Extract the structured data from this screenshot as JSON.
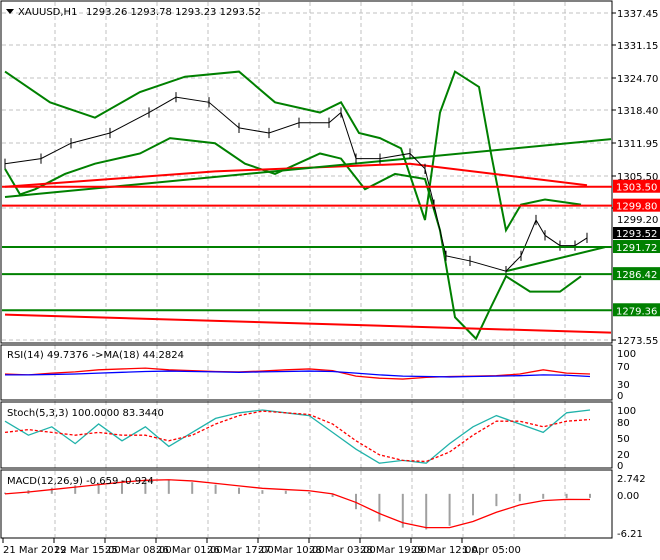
{
  "header": {
    "symbol": "XAUUSD,H1",
    "ohlc": "1293.26 1293.78 1293.23 1293.52"
  },
  "price_axis": [
    "1337.45",
    "1331.15",
    "1324.70",
    "1318.40",
    "1311.95",
    "1305.50",
    "1299.20",
    "1273.55"
  ],
  "current_price": "1293.52",
  "levels": [
    {
      "label": "1303.50",
      "value": 1303.5,
      "color": "#ff0000"
    },
    {
      "label": "1299.80",
      "value": 1299.8,
      "color": "#ff0000"
    },
    {
      "label": "1291.72",
      "value": 1291.72,
      "color": "#008000"
    },
    {
      "label": "1286.42",
      "value": 1286.42,
      "color": "#008000"
    },
    {
      "label": "1279.36",
      "value": 1279.36,
      "color": "#008000"
    }
  ],
  "time_axis": [
    "21 Mar 2019",
    "22 Mar 15:00",
    "25 Mar 08:00",
    "26 Mar 01:00",
    "26 Mar 17:00",
    "27 Mar 10:00",
    "28 Mar 03:00",
    "28 Mar 19:00",
    "29 Mar 12:00",
    "1 Apr 05:00"
  ],
  "rsi": {
    "label": "RSI(14) 49.7376  ->MA(18) 44.2824",
    "axis": [
      "100",
      "70",
      "30",
      "0"
    ]
  },
  "stoch": {
    "label": "Stoch(5,3,3) 100.0000 83.3440",
    "axis": [
      "100",
      "80",
      "50",
      "20",
      "0"
    ]
  },
  "macd": {
    "label": "MACD(12,26,9) -0.659 -0.924",
    "axis": [
      "2.742",
      "0.00",
      "-6.21"
    ]
  },
  "chart_data": {
    "type": "line",
    "ylim": [
      1273.55,
      1337.45
    ],
    "price": [
      [
        0,
        1308
      ],
      [
        12,
        1309
      ],
      [
        22,
        1312
      ],
      [
        35,
        1314
      ],
      [
        48,
        1318
      ],
      [
        57,
        1321
      ],
      [
        68,
        1320
      ],
      [
        78,
        1315
      ],
      [
        88,
        1314
      ],
      [
        98,
        1316
      ],
      [
        108,
        1316
      ],
      [
        112,
        1318
      ],
      [
        117,
        1309
      ],
      [
        125,
        1309
      ],
      [
        135,
        1310
      ],
      [
        140,
        1307
      ],
      [
        143,
        1300
      ],
      [
        147,
        1290
      ],
      [
        155,
        1289
      ],
      [
        167,
        1287
      ],
      [
        172,
        1290
      ],
      [
        177,
        1297
      ],
      [
        180,
        1294
      ],
      [
        185,
        1292
      ],
      [
        190,
        1292
      ],
      [
        194,
        1293.5
      ]
    ],
    "bb_upper": [
      [
        0,
        1326
      ],
      [
        15,
        1320
      ],
      [
        30,
        1317
      ],
      [
        45,
        1322
      ],
      [
        60,
        1325
      ],
      [
        78,
        1326
      ],
      [
        90,
        1320
      ],
      [
        105,
        1318
      ],
      [
        112,
        1320
      ],
      [
        118,
        1314
      ],
      [
        125,
        1313
      ],
      [
        132,
        1311
      ],
      [
        140,
        1297
      ],
      [
        145,
        1318
      ],
      [
        150,
        1326
      ],
      [
        158,
        1323
      ],
      [
        162,
        1310
      ],
      [
        167,
        1295
      ],
      [
        172,
        1300
      ],
      [
        180,
        1301
      ],
      [
        192,
        1300
      ]
    ],
    "bb_lower": [
      [
        0,
        1307
      ],
      [
        5,
        1302
      ],
      [
        10,
        1303
      ],
      [
        20,
        1306
      ],
      [
        30,
        1308
      ],
      [
        45,
        1310
      ],
      [
        55,
        1313
      ],
      [
        70,
        1312
      ],
      [
        80,
        1308
      ],
      [
        90,
        1306
      ],
      [
        105,
        1310
      ],
      [
        112,
        1309
      ],
      [
        120,
        1303
      ],
      [
        130,
        1306
      ],
      [
        140,
        1305
      ],
      [
        145,
        1295
      ],
      [
        150,
        1278
      ],
      [
        157,
        1273.8
      ],
      [
        162,
        1280
      ],
      [
        167,
        1286
      ],
      [
        175,
        1283
      ],
      [
        185,
        1283
      ],
      [
        192,
        1286
      ]
    ],
    "ma_red": [
      [
        0,
        1303.5
      ],
      [
        70,
        1306.5
      ],
      [
        135,
        1308
      ],
      [
        194,
        1303.8
      ]
    ],
    "trend_green": [
      [
        0,
        1301.5
      ],
      [
        202,
        1312.8
      ]
    ],
    "trend_red": [
      [
        0,
        1278.5
      ],
      [
        202,
        1275
      ]
    ],
    "trend_green_low": [
      [
        167,
        1287
      ],
      [
        200,
        1291.7
      ]
    ],
    "rsi_values": [
      50,
      48,
      52,
      55,
      60,
      62,
      64,
      60,
      58,
      56,
      55,
      57,
      60,
      62,
      58,
      45,
      40,
      38,
      42,
      44,
      45,
      46,
      50,
      60,
      52,
      50
    ],
    "rsi_ma": [
      48,
      48,
      49,
      50,
      52,
      54,
      56,
      57,
      56,
      55,
      54,
      55,
      56,
      57,
      56,
      52,
      48,
      45,
      44,
      43,
      44,
      45,
      46,
      48,
      47,
      44
    ],
    "stoch_k": [
      80,
      55,
      70,
      40,
      75,
      45,
      70,
      35,
      60,
      85,
      95,
      100,
      95,
      90,
      60,
      30,
      5,
      10,
      5,
      40,
      70,
      90,
      75,
      60,
      95,
      100
    ],
    "stoch_d": [
      60,
      65,
      60,
      55,
      60,
      55,
      55,
      45,
      55,
      75,
      90,
      98,
      95,
      92,
      75,
      45,
      20,
      10,
      8,
      25,
      55,
      80,
      80,
      70,
      80,
      83
    ],
    "macd_hist": [
      0.2,
      0.6,
      1.0,
      1.4,
      1.8,
      2.2,
      2.4,
      2.3,
      1.9,
      1.5,
      1.0,
      0.6,
      0.5,
      0.3,
      -0.5,
      -2.5,
      -4.5,
      -5.5,
      -5.8,
      -5.2,
      -3.5,
      -2,
      -1.2,
      -0.8,
      -0.7,
      -0.66
    ],
    "macd_signal": [
      0,
      0.3,
      0.7,
      1.1,
      1.5,
      1.9,
      2.2,
      2.3,
      2.1,
      1.7,
      1.3,
      0.9,
      0.7,
      0.5,
      0.0,
      -1.4,
      -3.2,
      -4.7,
      -5.5,
      -5.5,
      -4.5,
      -3,
      -1.8,
      -1.1,
      -0.9,
      -0.92
    ]
  }
}
